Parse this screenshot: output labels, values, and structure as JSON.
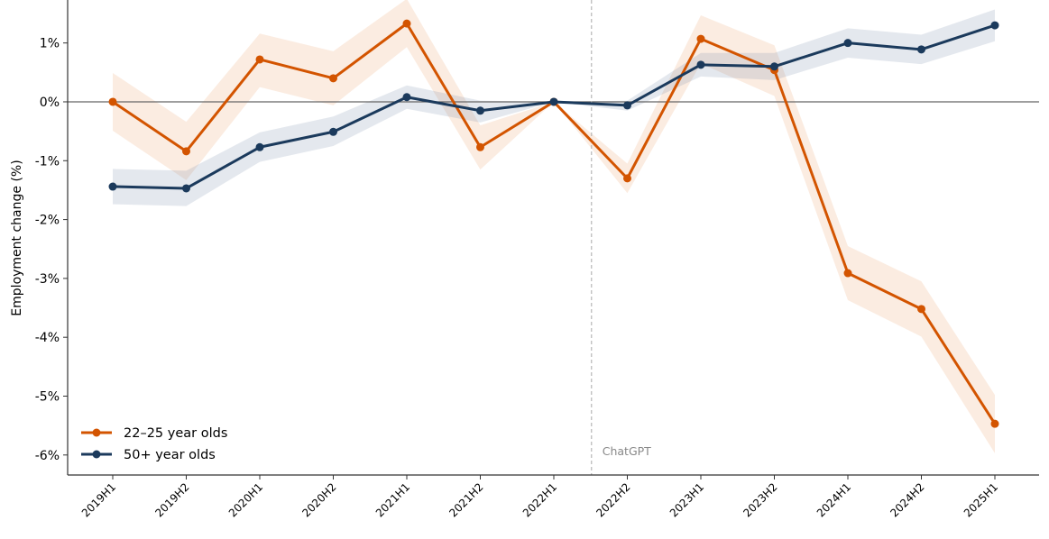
{
  "chart_data": {
    "type": "line",
    "title": "",
    "xlabel": "",
    "ylabel": "Employment change (%)",
    "categories": [
      "2019H1",
      "2019H2",
      "2020H1",
      "2020H2",
      "2021H1",
      "2021H2",
      "2022H1",
      "2022H2",
      "2023H1",
      "2023H2",
      "2024H1",
      "2024H2",
      "2025H1"
    ],
    "ylim": [
      -6.34,
      1.73
    ],
    "yticks": [
      1,
      0,
      -1,
      -2,
      -3,
      -4,
      -5,
      -6
    ],
    "ytick_labels": [
      "1%",
      "0%",
      "-1%",
      "-2%",
      "-3%",
      "-4%",
      "-5%",
      "-6%"
    ],
    "grid": false,
    "legend_position": "bottom-left",
    "reference_line_y": 0,
    "annotation": {
      "label": "ChatGPT",
      "x_between": [
        "2022H1",
        "2022H2"
      ]
    },
    "series": [
      {
        "name": "22–25 year olds",
        "color": "#D35400",
        "values": [
          0.0,
          -0.84,
          0.72,
          0.4,
          1.33,
          -0.77,
          0.0,
          -1.3,
          1.07,
          0.54,
          -2.91,
          -3.52,
          -5.47
        ],
        "band_upper": [
          0.49,
          -0.34,
          1.16,
          0.86,
          1.75,
          -0.4,
          0.0,
          -1.05,
          1.47,
          0.96,
          -2.45,
          -3.05,
          -4.98
        ],
        "band_lower": [
          -0.49,
          -1.33,
          0.25,
          -0.06,
          0.93,
          -1.15,
          0.0,
          -1.55,
          0.65,
          0.1,
          -3.37,
          -3.99,
          -5.97
        ]
      },
      {
        "name": "50+ year olds",
        "color": "#1B3A5C",
        "values": [
          -1.44,
          -1.47,
          -0.77,
          -0.51,
          0.08,
          -0.15,
          0.0,
          -0.06,
          0.63,
          0.6,
          1.0,
          0.89,
          1.3
        ],
        "band_upper": [
          -1.14,
          -1.17,
          -0.52,
          -0.25,
          0.28,
          0.02,
          0.0,
          0.02,
          0.83,
          0.83,
          1.25,
          1.14,
          1.57
        ],
        "band_lower": [
          -1.74,
          -1.77,
          -1.02,
          -0.75,
          -0.12,
          -0.35,
          0.0,
          -0.15,
          0.43,
          0.37,
          0.75,
          0.64,
          1.03
        ]
      }
    ]
  }
}
